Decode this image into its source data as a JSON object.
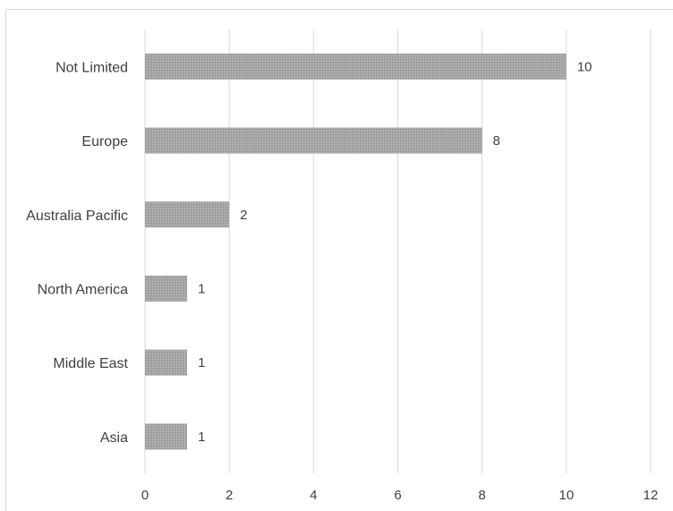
{
  "chart_data": {
    "type": "bar",
    "orientation": "horizontal",
    "title": "",
    "xlabel": "",
    "ylabel": "",
    "categories": [
      "Not Limited",
      "Europe",
      "Australia Pacific",
      "North America",
      "Middle East",
      "Asia"
    ],
    "values": [
      10,
      8,
      2,
      1,
      1,
      1
    ],
    "xlim": [
      0,
      12
    ],
    "x_ticks": [
      0,
      2,
      4,
      6,
      8,
      10,
      12
    ],
    "grid": true,
    "legend": "none",
    "bar_color": "#a6a6a6",
    "data_labels": true
  }
}
